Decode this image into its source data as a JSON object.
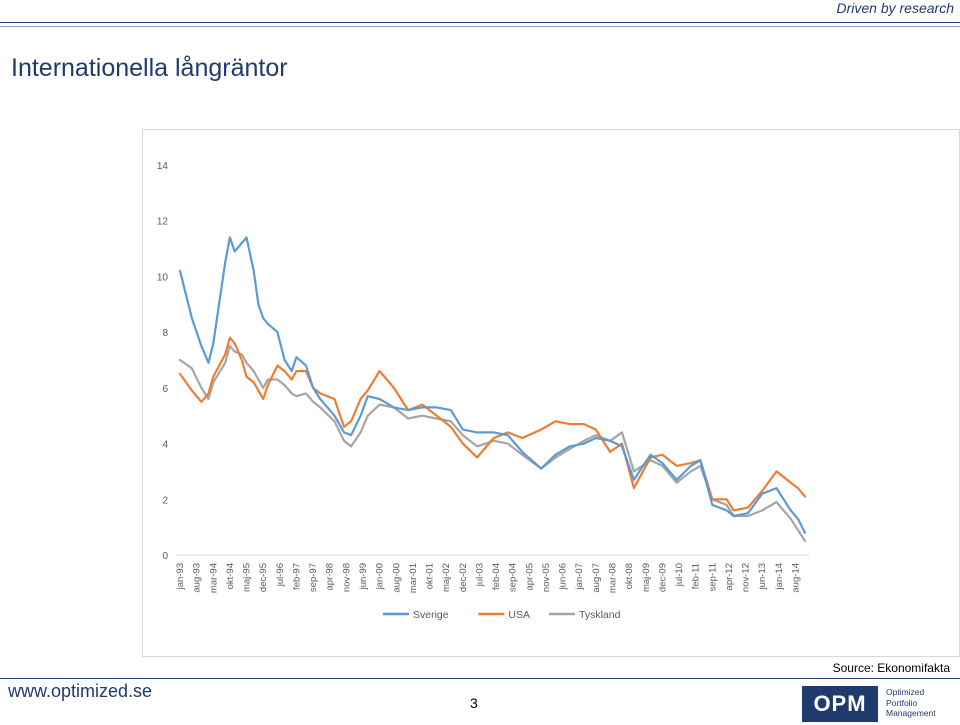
{
  "header": {
    "tagline": "Driven by research",
    "title": "Internationella långräntor"
  },
  "footer": {
    "source": "Source: Ekonomifakta",
    "url": "www.optimized.se",
    "page_number": "3",
    "logo": {
      "mark": "OPM",
      "lines": [
        "Optimized",
        "Portfolio",
        "Management"
      ]
    }
  },
  "colors": {
    "Sverige": "#5b9bd5",
    "USA": "#ed7d31",
    "Tyskland": "#a5a5a5",
    "brand": "#1f3a6d"
  },
  "chart_data": {
    "type": "line",
    "title": "",
    "xlabel": "",
    "ylabel": "",
    "ylim": [
      0,
      14
    ],
    "yticks": [
      0,
      2,
      4,
      6,
      8,
      10,
      12,
      14
    ],
    "grid": false,
    "legend": "bottom",
    "x_labels": [
      "jan-93",
      "aug-93",
      "mar-94",
      "okt-94",
      "maj-95",
      "dec-95",
      "jul-96",
      "feb-97",
      "sep-97",
      "apr-98",
      "nov-98",
      "jun-99",
      "jan-00",
      "aug-00",
      "mar-01",
      "okt-01",
      "maj-02",
      "dec-02",
      "jul-03",
      "feb-04",
      "sep-04",
      "apr-05",
      "nov-05",
      "jun-06",
      "jan-07",
      "aug-07",
      "mar-08",
      "okt-08",
      "maj-09",
      "dec-09",
      "jul-10",
      "feb-11",
      "sep-11",
      "apr-12",
      "nov-12",
      "jun-13",
      "jan-14",
      "aug-14"
    ],
    "x_range": [
      "jan-93",
      "dec-14"
    ],
    "series": [
      {
        "name": "Sverige",
        "x": [
          "jan-93",
          "jun-93",
          "okt-93",
          "jan-94",
          "mar-94",
          "aug-94",
          "okt-94",
          "dec-94",
          "mar-95",
          "maj-95",
          "aug-95",
          "okt-95",
          "dec-95",
          "feb-96",
          "jun-96",
          "sep-96",
          "dec-96",
          "feb-97",
          "jun-97",
          "sep-97",
          "dec-97",
          "jun-98",
          "okt-98",
          "jan-99",
          "maj-99",
          "aug-99",
          "jan-00",
          "jul-00",
          "jan-01",
          "jul-01",
          "jan-02",
          "jul-02",
          "dec-02",
          "jun-03",
          "jan-04",
          "jul-04",
          "jan-05",
          "sep-05",
          "mar-06",
          "sep-06",
          "mar-07",
          "aug-07",
          "feb-08",
          "jul-08",
          "dec-08",
          "jul-09",
          "dec-09",
          "jun-10",
          "dec-10",
          "apr-11",
          "sep-11",
          "mar-12",
          "jun-12",
          "dec-12",
          "jun-13",
          "dec-13",
          "jun-14",
          "sep-14",
          "dec-14"
        ],
        "y": [
          10.2,
          8.5,
          7.5,
          6.9,
          7.6,
          10.5,
          11.4,
          10.9,
          11.2,
          11.4,
          10.2,
          9.0,
          8.5,
          8.3,
          8.0,
          7.0,
          6.6,
          7.1,
          6.8,
          6.0,
          5.6,
          5.0,
          4.4,
          4.3,
          5.0,
          5.7,
          5.6,
          5.3,
          5.2,
          5.3,
          5.3,
          5.2,
          4.5,
          4.4,
          4.4,
          4.3,
          3.7,
          3.1,
          3.6,
          3.9,
          4.0,
          4.2,
          4.1,
          3.9,
          2.7,
          3.6,
          3.3,
          2.7,
          3.2,
          3.4,
          1.8,
          1.6,
          1.4,
          1.5,
          2.2,
          2.4,
          1.6,
          1.3,
          0.8
        ]
      },
      {
        "name": "USA",
        "x": [
          "jan-93",
          "jun-93",
          "okt-93",
          "jan-94",
          "mar-94",
          "aug-94",
          "okt-94",
          "dec-94",
          "mar-95",
          "maj-95",
          "aug-95",
          "okt-95",
          "dec-95",
          "feb-96",
          "jun-96",
          "sep-96",
          "dec-96",
          "feb-97",
          "jun-97",
          "sep-97",
          "dec-97",
          "jun-98",
          "okt-98",
          "jan-99",
          "maj-99",
          "aug-99",
          "jan-00",
          "jul-00",
          "jan-01",
          "jul-01",
          "jan-02",
          "jul-02",
          "dec-02",
          "jun-03",
          "jan-04",
          "jul-04",
          "jan-05",
          "sep-05",
          "mar-06",
          "sep-06",
          "mar-07",
          "aug-07",
          "feb-08",
          "jul-08",
          "dec-08",
          "jul-09",
          "dec-09",
          "jun-10",
          "dec-10",
          "apr-11",
          "sep-11",
          "mar-12",
          "jun-12",
          "dec-12",
          "jun-13",
          "dec-13",
          "jun-14",
          "sep-14",
          "dec-14"
        ],
        "y": [
          6.5,
          5.9,
          5.5,
          5.8,
          6.4,
          7.2,
          7.8,
          7.6,
          7.0,
          6.4,
          6.2,
          5.9,
          5.6,
          6.1,
          6.8,
          6.6,
          6.3,
          6.6,
          6.6,
          6.0,
          5.8,
          5.6,
          4.6,
          4.8,
          5.6,
          5.9,
          6.6,
          6.0,
          5.2,
          5.4,
          5.0,
          4.6,
          4.0,
          3.5,
          4.2,
          4.4,
          4.2,
          4.5,
          4.8,
          4.7,
          4.7,
          4.5,
          3.7,
          4.0,
          2.4,
          3.5,
          3.6,
          3.2,
          3.3,
          3.4,
          2.0,
          2.0,
          1.6,
          1.7,
          2.3,
          3.0,
          2.6,
          2.4,
          2.1
        ]
      },
      {
        "name": "Tyskland",
        "x": [
          "jan-93",
          "jun-93",
          "okt-93",
          "jan-94",
          "mar-94",
          "aug-94",
          "okt-94",
          "dec-94",
          "mar-95",
          "maj-95",
          "aug-95",
          "okt-95",
          "dec-95",
          "feb-96",
          "jun-96",
          "sep-96",
          "dec-96",
          "feb-97",
          "jun-97",
          "sep-97",
          "dec-97",
          "jun-98",
          "okt-98",
          "jan-99",
          "maj-99",
          "aug-99",
          "jan-00",
          "jul-00",
          "jan-01",
          "jul-01",
          "jan-02",
          "jul-02",
          "dec-02",
          "jun-03",
          "jan-04",
          "jul-04",
          "jan-05",
          "sep-05",
          "mar-06",
          "sep-06",
          "mar-07",
          "aug-07",
          "feb-08",
          "jul-08",
          "dec-08",
          "jul-09",
          "dec-09",
          "jun-10",
          "dec-10",
          "apr-11",
          "sep-11",
          "mar-12",
          "jun-12",
          "dec-12",
          "jun-13",
          "dec-13",
          "jun-14",
          "sep-14",
          "dec-14"
        ],
        "y": [
          7.0,
          6.7,
          6.0,
          5.6,
          6.2,
          6.9,
          7.5,
          7.3,
          7.2,
          6.9,
          6.6,
          6.3,
          6.0,
          6.3,
          6.3,
          6.1,
          5.8,
          5.7,
          5.8,
          5.5,
          5.3,
          4.8,
          4.1,
          3.9,
          4.4,
          5.0,
          5.4,
          5.3,
          4.9,
          5.0,
          4.9,
          4.8,
          4.3,
          3.9,
          4.1,
          4.0,
          3.6,
          3.1,
          3.5,
          3.8,
          4.1,
          4.3,
          4.1,
          4.4,
          3.0,
          3.4,
          3.2,
          2.6,
          3.0,
          3.2,
          2.0,
          1.8,
          1.4,
          1.4,
          1.6,
          1.9,
          1.3,
          0.9,
          0.5
        ]
      }
    ]
  }
}
